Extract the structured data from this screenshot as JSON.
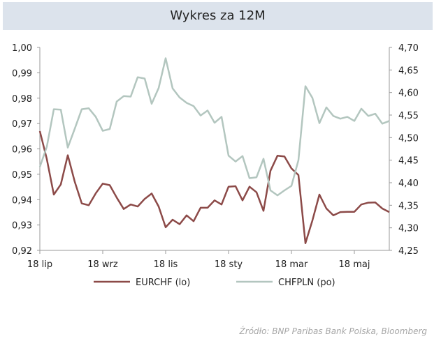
{
  "chart_data": {
    "type": "line",
    "title": "Wykres za 12M",
    "source": "Źródło:  BNP Paribas Bank Polska, Bloomberg",
    "x_labels": [
      "18 lip",
      "18 wrz",
      "18 lis",
      "18 sty",
      "18 mar",
      "18 maj"
    ],
    "x_label_index": [
      0,
      9,
      18,
      27,
      36,
      45
    ],
    "left_axis": {
      "ylim": [
        0.92,
        1.0
      ],
      "ticks": [
        "0,92",
        "0,93",
        "0,94",
        "0,95",
        "0,96",
        "0,97",
        "0,98",
        "0,99",
        "1,00"
      ]
    },
    "right_axis": {
      "ylim": [
        4.25,
        4.7
      ],
      "ticks": [
        "4,25",
        "4,30",
        "4,35",
        "4,40",
        "4,45",
        "4,50",
        "4,55",
        "4,60",
        "4,65",
        "4,70"
      ]
    },
    "legend_position": "bottom",
    "series": [
      {
        "name": "EURCHF (lo)",
        "axis": "left",
        "color": "#8c4a48",
        "values": [
          0.967,
          0.956,
          0.942,
          0.946,
          0.9575,
          0.947,
          0.9385,
          0.9378,
          0.9425,
          0.9463,
          0.9457,
          0.9408,
          0.9363,
          0.9381,
          0.9373,
          0.9403,
          0.9424,
          0.9373,
          0.9291,
          0.9321,
          0.9303,
          0.9338,
          0.9315,
          0.9368,
          0.9368,
          0.9397,
          0.9381,
          0.9451,
          0.9453,
          0.9397,
          0.9451,
          0.9429,
          0.9356,
          0.9514,
          0.9573,
          0.957,
          0.9523,
          0.9497,
          0.9228,
          0.9318,
          0.942,
          0.9365,
          0.9338,
          0.9351,
          0.9352,
          0.9352,
          0.9381,
          0.9388,
          0.9389,
          0.9365,
          0.9351
        ]
      },
      {
        "name": "CHFPLN (po)",
        "axis": "right",
        "color": "#b3c6bf",
        "values": [
          4.435,
          4.48,
          4.563,
          4.562,
          4.478,
          4.52,
          4.563,
          4.565,
          4.546,
          4.515,
          4.519,
          4.58,
          4.592,
          4.591,
          4.634,
          4.631,
          4.575,
          4.61,
          4.676,
          4.609,
          4.589,
          4.577,
          4.57,
          4.549,
          4.56,
          4.533,
          4.546,
          4.46,
          4.447,
          4.459,
          4.41,
          4.412,
          4.453,
          4.383,
          4.372,
          4.383,
          4.393,
          4.45,
          4.614,
          4.588,
          4.532,
          4.567,
          4.548,
          4.542,
          4.546,
          4.537,
          4.564,
          4.548,
          4.553,
          4.531,
          4.537
        ]
      }
    ]
  }
}
